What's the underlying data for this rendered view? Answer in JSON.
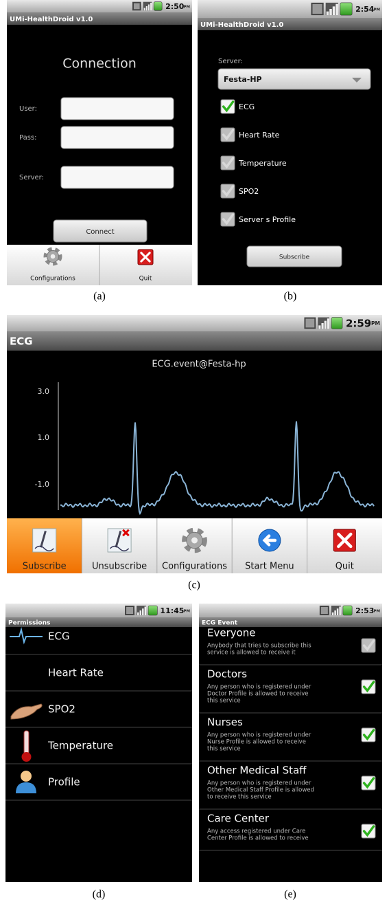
{
  "panel_a": {
    "status": {
      "time": "2:50",
      "ampm": "PM"
    },
    "app_title": "UMi-HealthDroid v1.0",
    "heading": "Connection",
    "fields": [
      "User:",
      "Pass:",
      "Server:"
    ],
    "button": "Connect",
    "menu": [
      "Configurations",
      "Quit"
    ],
    "caption": "(a)"
  },
  "panel_b": {
    "status": {
      "time": "2:54",
      "ampm": "PM"
    },
    "app_title": "UMi-HealthDroid v1.0",
    "server_label": "Server:",
    "server_value": "Festa-HP",
    "options": [
      {
        "label": "ECG",
        "checked": true
      },
      {
        "label": "Heart Rate",
        "checked": false
      },
      {
        "label": "Temperature",
        "checked": false
      },
      {
        "label": "SPO2",
        "checked": false
      },
      {
        "label": "Server s Profile",
        "checked": false
      }
    ],
    "button": "Subscribe",
    "caption": "(b)"
  },
  "panel_c": {
    "status": {
      "time": "2:59",
      "ampm": "PM"
    },
    "screen_title": "ECG",
    "plot_title": "ECG.event@Festa-hp",
    "y_labels": [
      "3.0",
      "1.0",
      "-1.0"
    ],
    "menu": [
      "Subscribe",
      "Unsubscribe",
      "Configurations",
      "Start Menu",
      "Quit"
    ],
    "caption": "(c)"
  },
  "panel_d": {
    "status": {
      "time": "11:45",
      "ampm": "PM"
    },
    "screen_title": "Permissions",
    "items": [
      "ECG",
      "Heart Rate",
      "SPO2",
      "Temperature",
      "Profile"
    ],
    "caption": "(d)"
  },
  "panel_e": {
    "status": {
      "time": "2:53",
      "ampm": "PM"
    },
    "screen_title": "ECG Event",
    "items": [
      {
        "title": "Everyone",
        "description": [
          "Anybody that tries to subscribe this",
          "service is allowed to receive it"
        ],
        "checked": false
      },
      {
        "title": "Doctors",
        "description": [
          "Any person who is registered under",
          "Doctor Profile is allowed to receive",
          "this service"
        ],
        "checked": true
      },
      {
        "title": "Nurses",
        "description": [
          "Any person who is registered under",
          "Nurse Profile is allowed to receive",
          "this service"
        ],
        "checked": true
      },
      {
        "title": "Other Medical Staff",
        "description": [
          "Any person who is registered under",
          "Other Medical Staff Profile is allowed",
          "to receive this service"
        ],
        "checked": true
      },
      {
        "title": "Care Center",
        "description": [
          "Any access registered under Care",
          "Center Profile is allowed to receive"
        ],
        "checked": true
      }
    ],
    "caption": "(e)"
  }
}
